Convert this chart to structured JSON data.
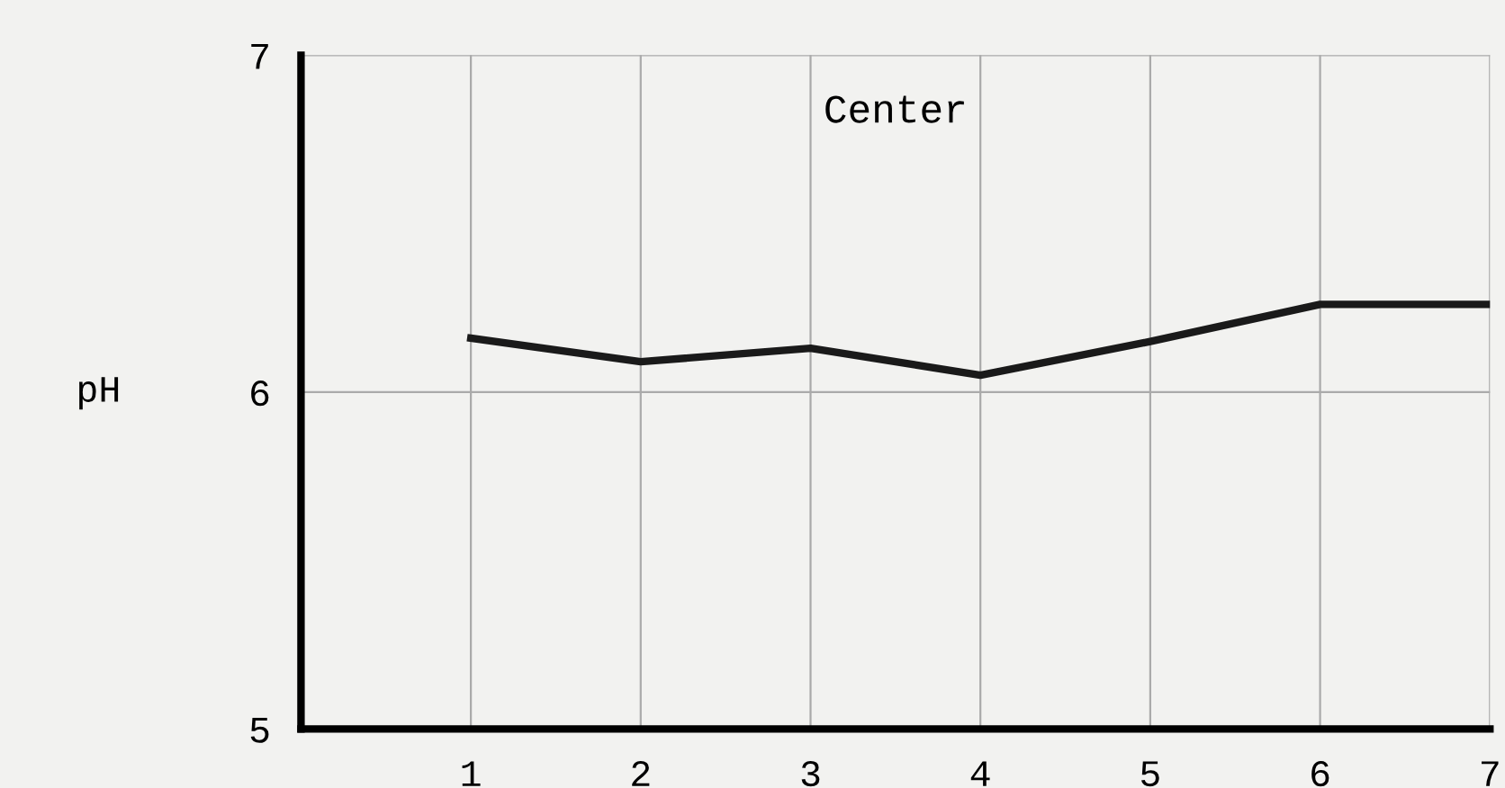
{
  "chart_data": {
    "type": "line",
    "title": "Center",
    "ylabel": "pH",
    "x": [
      1,
      2,
      3,
      4,
      5,
      6,
      7
    ],
    "series": [
      {
        "color": "#1a1a1a",
        "values": [
          6.16,
          6.09,
          6.13,
          6.05,
          6.15,
          6.26,
          6.26
        ]
      }
    ],
    "xlim": [
      0,
      7
    ],
    "xticks": [
      1,
      2,
      3,
      4,
      5,
      6,
      7
    ],
    "ylim": [
      5,
      7
    ],
    "yticks": [
      5,
      6,
      7
    ],
    "grid": true,
    "marker": "none",
    "line_style": "solid"
  }
}
